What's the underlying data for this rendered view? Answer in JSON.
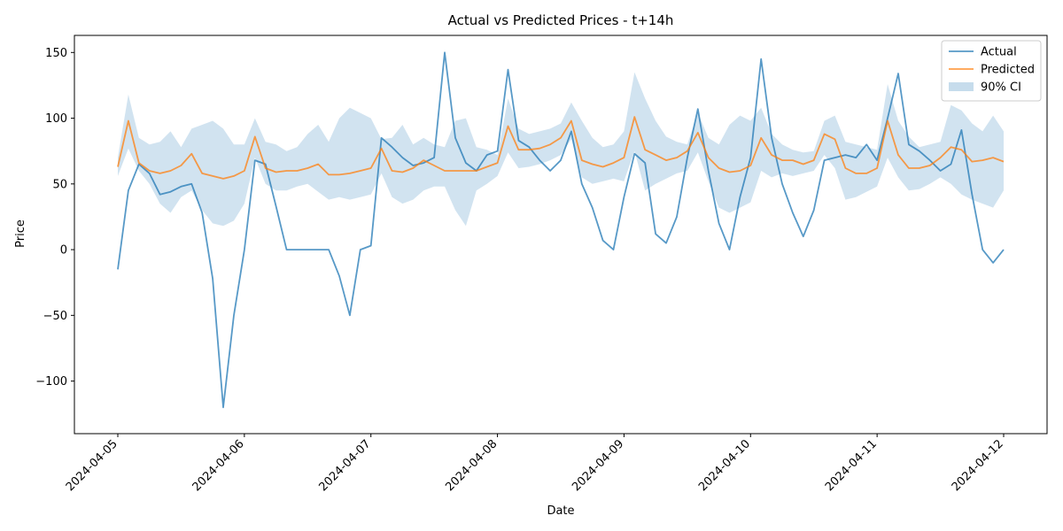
{
  "chart_data": {
    "type": "line",
    "title": "Actual vs Predicted Prices - t+14h",
    "xlabel": "Date",
    "ylabel": "Price",
    "x_range": [
      "2024-04-05T00:00",
      "2024-04-12T00:00"
    ],
    "ylim": [
      -140,
      163
    ],
    "y_ticks": [
      -100,
      -50,
      0,
      50,
      100,
      150
    ],
    "x_ticks": [
      "2024-04-05",
      "2024-04-06",
      "2024-04-07",
      "2024-04-08",
      "2024-04-09",
      "2024-04-10",
      "2024-04-11",
      "2024-04-12"
    ],
    "grid": false,
    "legend_position": "top-right",
    "legend": [
      "Actual",
      "Predicted",
      "90% CI"
    ],
    "colors": {
      "actual": "#1f77b4",
      "predicted": "#ff7f0e",
      "ci": "#c6dcec"
    },
    "x": [
      "2024-04-05T00:00",
      "2024-04-05T02:00",
      "2024-04-05T04:00",
      "2024-04-05T06:00",
      "2024-04-05T08:00",
      "2024-04-05T10:00",
      "2024-04-05T12:00",
      "2024-04-05T14:00",
      "2024-04-05T16:00",
      "2024-04-05T18:00",
      "2024-04-05T20:00",
      "2024-04-05T22:00",
      "2024-04-06T00:00",
      "2024-04-06T02:00",
      "2024-04-06T04:00",
      "2024-04-06T06:00",
      "2024-04-06T08:00",
      "2024-04-06T10:00",
      "2024-04-06T12:00",
      "2024-04-06T14:00",
      "2024-04-06T16:00",
      "2024-04-06T18:00",
      "2024-04-06T20:00",
      "2024-04-06T22:00",
      "2024-04-07T00:00",
      "2024-04-07T02:00",
      "2024-04-07T04:00",
      "2024-04-07T06:00",
      "2024-04-07T08:00",
      "2024-04-07T10:00",
      "2024-04-07T12:00",
      "2024-04-07T14:00",
      "2024-04-07T16:00",
      "2024-04-07T18:00",
      "2024-04-07T20:00",
      "2024-04-07T22:00",
      "2024-04-08T00:00",
      "2024-04-08T02:00",
      "2024-04-08T04:00",
      "2024-04-08T06:00",
      "2024-04-08T08:00",
      "2024-04-08T10:00",
      "2024-04-08T12:00",
      "2024-04-08T14:00",
      "2024-04-08T16:00",
      "2024-04-08T18:00",
      "2024-04-08T20:00",
      "2024-04-08T22:00",
      "2024-04-09T00:00",
      "2024-04-09T02:00",
      "2024-04-09T04:00",
      "2024-04-09T06:00",
      "2024-04-09T08:00",
      "2024-04-09T10:00",
      "2024-04-09T12:00",
      "2024-04-09T14:00",
      "2024-04-09T16:00",
      "2024-04-09T18:00",
      "2024-04-09T20:00",
      "2024-04-09T22:00",
      "2024-04-10T00:00",
      "2024-04-10T02:00",
      "2024-04-10T04:00",
      "2024-04-10T06:00",
      "2024-04-10T08:00",
      "2024-04-10T10:00",
      "2024-04-10T12:00",
      "2024-04-10T14:00",
      "2024-04-10T16:00",
      "2024-04-10T18:00",
      "2024-04-10T20:00",
      "2024-04-10T22:00",
      "2024-04-11T00:00",
      "2024-04-11T02:00",
      "2024-04-11T04:00",
      "2024-04-11T06:00",
      "2024-04-11T08:00",
      "2024-04-11T10:00",
      "2024-04-11T12:00",
      "2024-04-11T14:00",
      "2024-04-11T16:00",
      "2024-04-11T18:00",
      "2024-04-11T20:00",
      "2024-04-11T22:00",
      "2024-04-12T00:00"
    ],
    "series": [
      {
        "name": "Actual",
        "values": [
          -15,
          45,
          65,
          58,
          42,
          44,
          48,
          50,
          28,
          -22,
          -120,
          -50,
          0,
          68,
          65,
          33,
          0,
          0,
          0,
          0,
          0,
          -20,
          -50,
          0,
          3,
          85,
          78,
          70,
          64,
          66,
          70,
          150,
          85,
          66,
          60,
          72,
          75,
          137,
          83,
          78,
          68,
          60,
          68,
          90,
          50,
          32,
          7,
          0,
          40,
          73,
          66,
          12,
          5,
          25,
          70,
          107,
          60,
          20,
          0,
          40,
          70,
          145,
          85,
          50,
          28,
          10,
          30,
          68,
          70,
          72,
          70,
          80,
          68,
          100,
          134,
          80,
          75,
          68,
          60,
          65,
          91,
          42,
          0,
          -10,
          0
        ]
      },
      {
        "name": "Predicted",
        "values": [
          63,
          98,
          66,
          60,
          58,
          60,
          64,
          73,
          58,
          56,
          54,
          56,
          60,
          86,
          62,
          59,
          60,
          60,
          62,
          65,
          57,
          57,
          58,
          60,
          62,
          77,
          60,
          59,
          62,
          68,
          64,
          60,
          60,
          60,
          60,
          63,
          66,
          94,
          76,
          76,
          77,
          80,
          85,
          98,
          68,
          65,
          63,
          66,
          70,
          101,
          76,
          72,
          68,
          70,
          75,
          89,
          70,
          62,
          59,
          60,
          64,
          85,
          72,
          68,
          68,
          65,
          68,
          88,
          84,
          62,
          58,
          58,
          62,
          98,
          72,
          62,
          62,
          64,
          70,
          78,
          76,
          67,
          68,
          70,
          67
        ]
      },
      {
        "name": "90% CI",
        "lower": [
          56,
          77,
          60,
          50,
          35,
          28,
          40,
          45,
          30,
          20,
          18,
          22,
          35,
          70,
          50,
          45,
          45,
          48,
          50,
          44,
          38,
          40,
          38,
          40,
          42,
          58,
          40,
          35,
          38,
          45,
          48,
          48,
          30,
          18,
          45,
          50,
          56,
          74,
          62,
          63,
          65,
          68,
          72,
          84,
          55,
          50,
          52,
          54,
          52,
          75,
          45,
          50,
          54,
          58,
          60,
          74,
          52,
          32,
          28,
          32,
          36,
          60,
          55,
          58,
          56,
          58,
          60,
          72,
          62,
          38,
          40,
          44,
          48,
          70,
          55,
          45,
          46,
          50,
          55,
          50,
          42,
          38,
          35,
          32,
          45
        ],
        "upper": [
          70,
          118,
          85,
          80,
          82,
          90,
          78,
          92,
          95,
          98,
          92,
          80,
          80,
          100,
          82,
          80,
          75,
          78,
          88,
          95,
          82,
          100,
          108,
          104,
          100,
          84,
          85,
          95,
          80,
          85,
          80,
          78,
          98,
          100,
          78,
          76,
          72,
          115,
          92,
          88,
          90,
          92,
          96,
          112,
          98,
          85,
          78,
          80,
          90,
          135,
          115,
          98,
          86,
          82,
          80,
          104,
          85,
          80,
          95,
          102,
          98,
          108,
          88,
          80,
          76,
          74,
          75,
          98,
          102,
          82,
          80,
          78,
          76,
          126,
          98,
          86,
          78,
          80,
          82,
          110,
          106,
          96,
          90,
          102,
          90
        ]
      }
    ]
  }
}
